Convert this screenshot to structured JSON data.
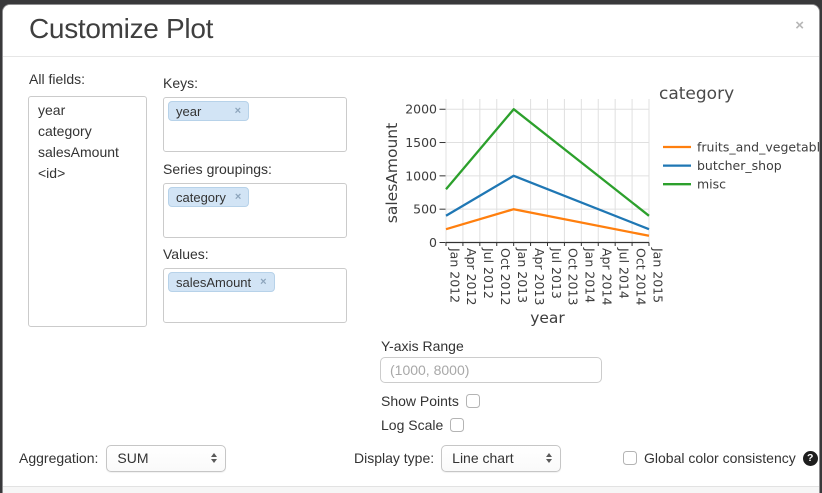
{
  "dialog": {
    "title": "Customize Plot"
  },
  "ui": {
    "close_glyph": "×",
    "tag_remove_glyph": "×"
  },
  "fields_panel": {
    "label": "All fields:",
    "items": [
      "year",
      "category",
      "salesAmount",
      "<id>"
    ]
  },
  "mapping_panel": {
    "sections": [
      {
        "label": "Keys:",
        "tags": [
          "year"
        ]
      },
      {
        "label": "Series groupings:",
        "tags": [
          "category"
        ]
      },
      {
        "label": "Values:",
        "tags": [
          "salesAmount"
        ]
      }
    ]
  },
  "options_panel": {
    "y_range_label": "Y-axis Range",
    "y_range_value": "",
    "y_range_placeholder": "(1000, 8000)",
    "show_points_label": "Show Points",
    "show_points_checked": false,
    "log_scale_label": "Log Scale",
    "log_scale_checked": false
  },
  "footer_controls": {
    "aggregation_label": "Aggregation:",
    "aggregation_value": "SUM",
    "display_type_label": "Display type:",
    "display_type_value": "Line chart",
    "global_color_label": "Global color consistency",
    "global_color_checked": false,
    "help_glyph": "?"
  },
  "chart_data": {
    "type": "line",
    "title": "",
    "xlabel": "year",
    "ylabel": "salesAmount",
    "x_tick_labels": [
      "Jan 2012",
      "Apr 2012",
      "Jul 2012",
      "Oct 2012",
      "Jan 2013",
      "Apr 2013",
      "Jul 2013",
      "Oct 2013",
      "Jan 2014",
      "Apr 2014",
      "Jul 2014",
      "Oct 2014",
      "Jan 2015"
    ],
    "yticks": [
      0,
      500,
      1000,
      1500,
      2000
    ],
    "ylim": [
      0,
      2150
    ],
    "grid": true,
    "legend": {
      "title": "category",
      "position": "right"
    },
    "colors": {
      "grid": "#e0e0e0",
      "axis": "#333333",
      "text": "#3d3d3d"
    },
    "series": [
      {
        "name": "fruits_and_vegetables",
        "color": "#ff7f0e",
        "x": [
          "Jan 2012",
          "Jan 2013",
          "Jan 2015"
        ],
        "values": [
          200,
          500,
          100
        ]
      },
      {
        "name": "butcher_shop",
        "color": "#1f77b4",
        "x": [
          "Jan 2012",
          "Jan 2013",
          "Jan 2015"
        ],
        "values": [
          400,
          1000,
          200
        ]
      },
      {
        "name": "misc",
        "color": "#2ca02c",
        "x": [
          "Jan 2012",
          "Jan 2013",
          "Jan 2015"
        ],
        "values": [
          800,
          2000,
          400
        ]
      }
    ]
  }
}
